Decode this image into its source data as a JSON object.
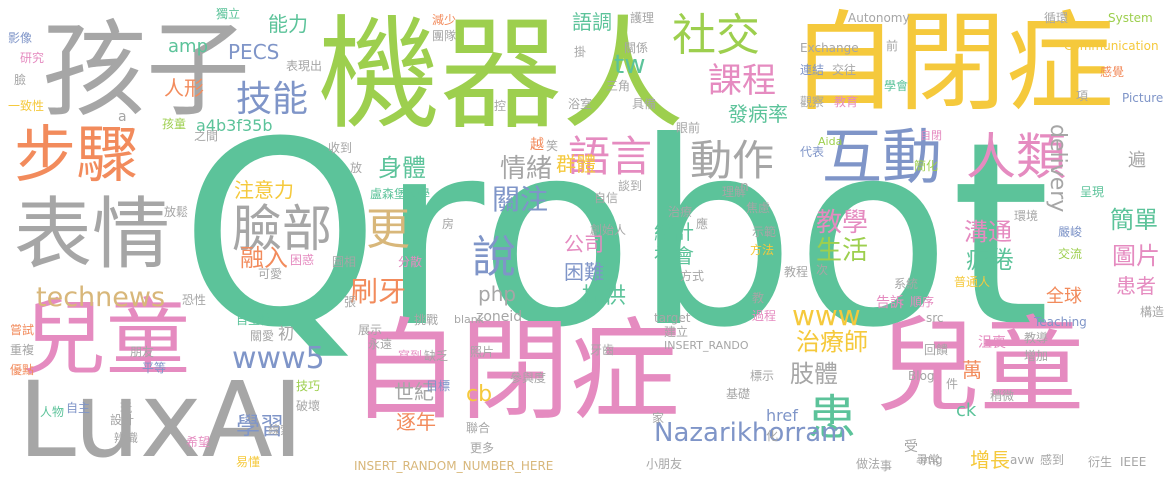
{
  "colors": {
    "green": "#5cc39a",
    "lime": "#9dcf4e",
    "gold": "#f5c93c",
    "pink": "#e58bc0",
    "gray": "#a6a6a6",
    "orange": "#f28b5c",
    "blue": "#7f95c8",
    "tan": "#d8b77a"
  },
  "words": [
    {
      "text": "Qrobot",
      "color": "green"
    },
    {
      "text": "機器人",
      "color": "lime"
    },
    {
      "text": "自閉症",
      "color": "pink"
    },
    {
      "text": "兒童",
      "color": "pink"
    },
    {
      "text": "自閉症",
      "color": "gold"
    },
    {
      "text": "孩子",
      "color": "gray"
    },
    {
      "text": "LuxAI",
      "color": "gray"
    },
    {
      "text": "兒童",
      "color": "pink"
    },
    {
      "text": "表情",
      "color": "gray"
    },
    {
      "text": "步驟",
      "color": "orange"
    },
    {
      "text": "互動",
      "color": "blue"
    },
    {
      "text": "人類",
      "color": "pink"
    },
    {
      "text": "社交",
      "color": "lime"
    },
    {
      "text": "臉部",
      "color": "gray"
    },
    {
      "text": "課程",
      "color": "pink"
    },
    {
      "text": "技能",
      "color": "blue"
    },
    {
      "text": "語言",
      "color": "pink"
    },
    {
      "text": "動作",
      "color": "gray"
    },
    {
      "text": "更",
      "color": "tan"
    },
    {
      "text": "說",
      "color": "blue"
    },
    {
      "text": "患",
      "color": "green"
    },
    {
      "text": "刷牙",
      "color": "orange"
    },
    {
      "text": "www5",
      "color": "blue"
    },
    {
      "text": "technews",
      "color": "tan"
    },
    {
      "text": "Nazarikhorram",
      "color": "blue"
    },
    {
      "text": "www",
      "color": "gold"
    },
    {
      "text": "身體",
      "color": "green"
    },
    {
      "text": "關注",
      "color": "blue"
    },
    {
      "text": "情緒",
      "color": "gray"
    },
    {
      "text": "群體",
      "color": "gold"
    },
    {
      "text": "delivery",
      "color": "gray"
    },
    {
      "text": "融入",
      "color": "orange"
    },
    {
      "text": "注意力",
      "color": "gold"
    },
    {
      "text": "教學",
      "color": "pink"
    },
    {
      "text": "生活",
      "color": "lime"
    },
    {
      "text": "溝通",
      "color": "pink"
    },
    {
      "text": "疲倦",
      "color": "green"
    },
    {
      "text": "簡單",
      "color": "green"
    },
    {
      "text": "圖片",
      "color": "pink"
    },
    {
      "text": "患者",
      "color": "pink"
    },
    {
      "text": "治療師",
      "color": "gold"
    },
    {
      "text": "肢體",
      "color": "gray"
    },
    {
      "text": "學習",
      "color": "blue"
    },
    {
      "text": "世紀",
      "color": "gray"
    },
    {
      "text": "逐年",
      "color": "orange"
    },
    {
      "text": "cb",
      "color": "gold"
    },
    {
      "text": "提供",
      "color": "green"
    },
    {
      "text": "公司",
      "color": "pink"
    },
    {
      "text": "統計",
      "color": "green"
    },
    {
      "text": "社會",
      "color": "green"
    },
    {
      "text": "困難",
      "color": "blue"
    },
    {
      "text": "php",
      "color": "gray"
    },
    {
      "text": "tw",
      "color": "green"
    },
    {
      "text": "amp",
      "color": "green"
    },
    {
      "text": "PECS",
      "color": "blue"
    },
    {
      "text": "人形",
      "color": "orange"
    },
    {
      "text": "能力",
      "color": "green"
    },
    {
      "text": "語調",
      "color": "green"
    },
    {
      "text": "發病率",
      "color": "green"
    },
    {
      "text": "a4b3f35b",
      "color": "green"
    },
    {
      "text": "全球",
      "color": "orange"
    },
    {
      "text": "萬",
      "color": "orange"
    },
    {
      "text": "增長",
      "color": "gold"
    },
    {
      "text": "ck",
      "color": "green"
    },
    {
      "text": "href",
      "color": "blue"
    },
    {
      "text": "遍",
      "color": "gray"
    },
    {
      "text": "zoneid",
      "color": "gray"
    },
    {
      "text": "Autonomy",
      "color": "gray"
    },
    {
      "text": "Exchange",
      "color": "gray"
    },
    {
      "text": "Communication",
      "color": "gold"
    },
    {
      "text": "System",
      "color": "lime"
    },
    {
      "text": "Picture",
      "color": "blue"
    },
    {
      "text": "Teaching",
      "color": "blue"
    },
    {
      "text": "INSERT_RANDOM_NUMBER_HERE",
      "color": "tan"
    },
    {
      "text": "INSERT_RANDO",
      "color": "gray"
    },
    {
      "text": "blank",
      "color": "gray"
    },
    {
      "text": "target",
      "color": "gray"
    },
    {
      "text": "IEEE",
      "color": "gray"
    },
    {
      "text": "Blog",
      "color": "gray"
    },
    {
      "text": "avw",
      "color": "gray"
    },
    {
      "text": "src",
      "color": "gray"
    },
    {
      "text": "img",
      "color": "gray"
    },
    {
      "text": "Aida",
      "color": "lime"
    },
    {
      "text": "盧森堡大學",
      "color": "green"
    },
    {
      "text": "創始人",
      "color": "gray"
    },
    {
      "text": "影像",
      "color": "blue"
    },
    {
      "text": "研究",
      "color": "pink"
    },
    {
      "text": "臉",
      "color": "gray"
    },
    {
      "text": "一致性",
      "color": "gold"
    },
    {
      "text": "孩童",
      "color": "lime"
    },
    {
      "text": "獨立",
      "color": "green"
    },
    {
      "text": "減少",
      "color": "orange"
    },
    {
      "text": "團隊",
      "color": "gray"
    },
    {
      "text": "護理",
      "color": "gray"
    },
    {
      "text": "循環",
      "color": "gray"
    },
    {
      "text": "感覺",
      "color": "orange"
    },
    {
      "text": "連結",
      "color": "blue"
    },
    {
      "text": "交往",
      "color": "gray"
    },
    {
      "text": "觀察",
      "color": "gray"
    },
    {
      "text": "教育",
      "color": "pink"
    },
    {
      "text": "學會",
      "color": "green"
    },
    {
      "text": "浴室",
      "color": "gray"
    },
    {
      "text": "具備",
      "color": "gray"
    },
    {
      "text": "眼前",
      "color": "gray"
    },
    {
      "text": "自閉",
      "color": "pink"
    },
    {
      "text": "代表",
      "color": "blue"
    },
    {
      "text": "簡化",
      "color": "lime"
    },
    {
      "text": "呈現",
      "color": "green"
    },
    {
      "text": "理解",
      "color": "gray"
    },
    {
      "text": "焦慮",
      "color": "gray"
    },
    {
      "text": "環境",
      "color": "gray"
    },
    {
      "text": "嚴峻",
      "color": "blue"
    },
    {
      "text": "交流",
      "color": "lime"
    },
    {
      "text": "示範",
      "color": "gray"
    },
    {
      "text": "方法",
      "color": "gold"
    },
    {
      "text": "教程",
      "color": "gray"
    },
    {
      "text": "方式",
      "color": "gray"
    },
    {
      "text": "系統",
      "color": "gray"
    },
    {
      "text": "告訴",
      "color": "pink"
    },
    {
      "text": "順序",
      "color": "pink"
    },
    {
      "text": "普通人",
      "color": "gold"
    },
    {
      "text": "構造",
      "color": "gray"
    },
    {
      "text": "教導",
      "color": "gray"
    },
    {
      "text": "增加",
      "color": "gray"
    },
    {
      "text": "回饋",
      "color": "gray"
    },
    {
      "text": "沮喪",
      "color": "pink"
    },
    {
      "text": "稍微",
      "color": "gray"
    },
    {
      "text": "基礎",
      "color": "gray"
    },
    {
      "text": "標示",
      "color": "gray"
    },
    {
      "text": "過程",
      "color": "pink"
    },
    {
      "text": "建立",
      "color": "gray"
    },
    {
      "text": "收到",
      "color": "gray"
    },
    {
      "text": "放鬆",
      "color": "gray"
    },
    {
      "text": "可愛",
      "color": "gray"
    },
    {
      "text": "困惑",
      "color": "pink"
    },
    {
      "text": "分散",
      "color": "pink"
    },
    {
      "text": "圖相",
      "color": "gray"
    },
    {
      "text": "恐性",
      "color": "gray"
    },
    {
      "text": "嘗試",
      "color": "orange"
    },
    {
      "text": "重複",
      "color": "gray"
    },
    {
      "text": "優點",
      "color": "orange"
    },
    {
      "text": "人物",
      "color": "green"
    },
    {
      "text": "自主",
      "color": "blue"
    },
    {
      "text": "朋友",
      "color": "gray"
    },
    {
      "text": "平等",
      "color": "blue"
    },
    {
      "text": "設計",
      "color": "gray"
    },
    {
      "text": "辨識",
      "color": "gray"
    },
    {
      "text": "自主性",
      "color": "green"
    },
    {
      "text": "關愛",
      "color": "gray"
    },
    {
      "text": "技巧",
      "color": "lime"
    },
    {
      "text": "破壞",
      "color": "gray"
    },
    {
      "text": "希望",
      "color": "pink"
    },
    {
      "text": "線索",
      "color": "gray"
    },
    {
      "text": "易懂",
      "color": "gold"
    },
    {
      "text": "展示",
      "color": "gray"
    },
    {
      "text": "永遠",
      "color": "gray"
    },
    {
      "text": "挑戰",
      "color": "gray"
    },
    {
      "text": "缺乏",
      "color": "gray"
    },
    {
      "text": "寫到",
      "color": "pink"
    },
    {
      "text": "目標",
      "color": "blue"
    },
    {
      "text": "照片",
      "color": "gray"
    },
    {
      "text": "參與度",
      "color": "gray"
    },
    {
      "text": "牙齒",
      "color": "gray"
    },
    {
      "text": "聯合",
      "color": "gray"
    },
    {
      "text": "更多",
      "color": "gray"
    },
    {
      "text": "小朋友",
      "color": "gray"
    },
    {
      "text": "做法",
      "color": "gray"
    },
    {
      "text": "尋常",
      "color": "gray"
    },
    {
      "text": "感到",
      "color": "gray"
    },
    {
      "text": "衍生",
      "color": "gray"
    },
    {
      "text": "表現出",
      "color": "gray"
    },
    {
      "text": "關係",
      "color": "gray"
    },
    {
      "text": "三角",
      "color": "gray"
    },
    {
      "text": "之間",
      "color": "gray"
    },
    {
      "text": "自信",
      "color": "gray"
    },
    {
      "text": "治療",
      "color": "gray"
    },
    {
      "text": "談到",
      "color": "gray"
    },
    {
      "text": "放",
      "color": "gray"
    },
    {
      "text": "笑",
      "color": "gray"
    },
    {
      "text": "越",
      "color": "orange"
    },
    {
      "text": "初",
      "color": "gray"
    },
    {
      "text": "受",
      "color": "gray"
    },
    {
      "text": "掛",
      "color": "gray"
    },
    {
      "text": "前",
      "color": "gray"
    },
    {
      "text": "項",
      "color": "gray"
    },
    {
      "text": "應",
      "color": "gray"
    },
    {
      "text": "次",
      "color": "gray"
    },
    {
      "text": "教",
      "color": "gray"
    },
    {
      "text": "事",
      "color": "gray"
    },
    {
      "text": "件",
      "color": "gray"
    },
    {
      "text": "化",
      "color": "gray"
    },
    {
      "text": "家",
      "color": "gray"
    },
    {
      "text": "房",
      "color": "gray"
    },
    {
      "text": "控",
      "color": "gray"
    },
    {
      "text": "玩",
      "color": "gray"
    },
    {
      "text": "張",
      "color": "gray"
    },
    {
      "text": "n",
      "color": "gray"
    },
    {
      "text": "a",
      "color": "gray"
    }
  ]
}
